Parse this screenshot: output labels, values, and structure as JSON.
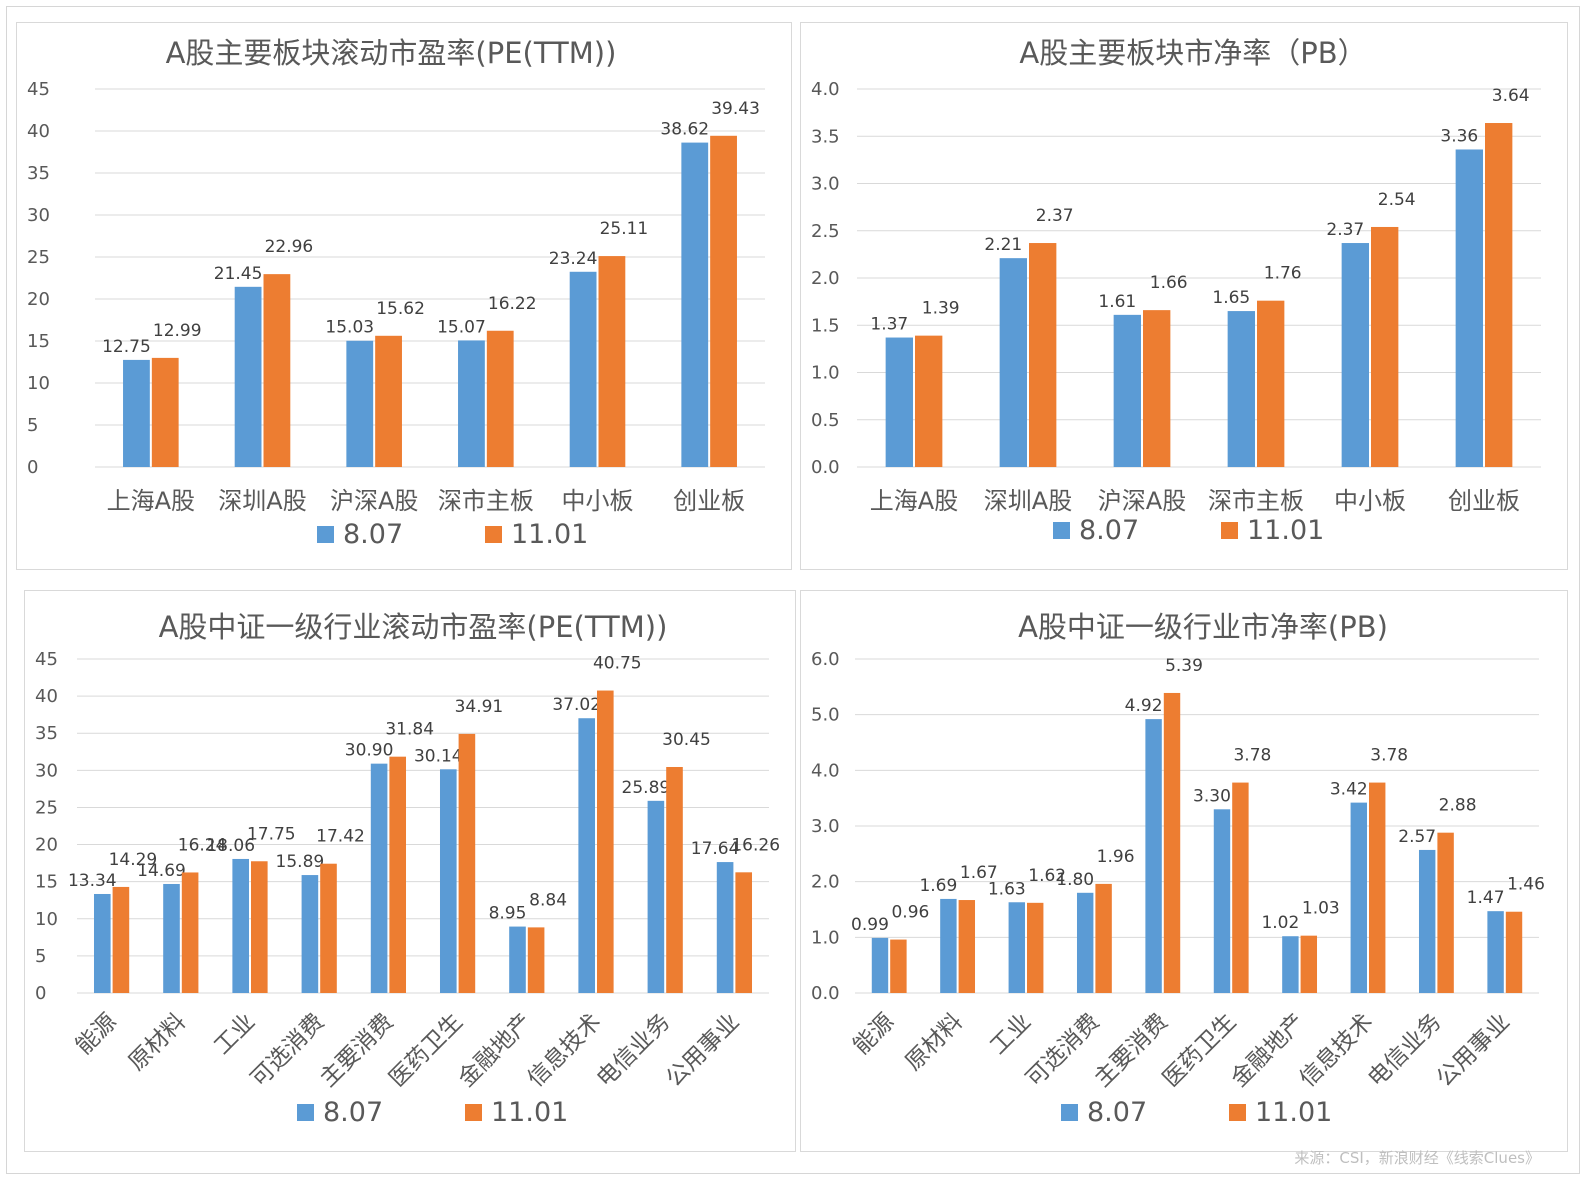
{
  "colors": {
    "s1": "#5b9bd5",
    "s2": "#ed7d31",
    "grid": "#d9d9d9",
    "text": "#595959"
  },
  "legend": [
    "8.07",
    "11.01"
  ],
  "source": "来源：CSI，新浪财经《线索Clues》",
  "chart_data": [
    {
      "type": "bar",
      "title": "A股主要板块滚动市盈率(PE(TTM))",
      "categories": [
        "上海A股",
        "深圳A股",
        "沪深A股",
        "深市主板",
        "中小板",
        "创业板"
      ],
      "series": [
        {
          "name": "8.07",
          "values": [
            12.75,
            21.45,
            15.03,
            15.07,
            23.24,
            38.62
          ]
        },
        {
          "name": "11.01",
          "values": [
            12.99,
            22.96,
            15.62,
            16.22,
            25.11,
            39.43
          ]
        }
      ],
      "ylim": [
        0,
        45
      ],
      "yticks": [
        "0",
        "5",
        "10",
        "15",
        "20",
        "25",
        "30",
        "35",
        "40",
        "45"
      ],
      "labels": [
        [
          "12.75",
          "21.45",
          "15.03",
          "15.07",
          "23.24",
          "38.62"
        ],
        [
          "12.99",
          "22.96",
          "15.62",
          "16.22",
          "25.11",
          "39.43"
        ]
      ],
      "grid": true,
      "legend_position": "bottom"
    },
    {
      "type": "bar",
      "title": "A股主要板块市净率（PB）",
      "categories": [
        "上海A股",
        "深圳A股",
        "沪深A股",
        "深市主板",
        "中小板",
        "创业板"
      ],
      "series": [
        {
          "name": "8.07",
          "values": [
            1.37,
            2.21,
            1.61,
            1.65,
            2.37,
            3.36
          ]
        },
        {
          "name": "11.01",
          "values": [
            1.39,
            2.37,
            1.66,
            1.76,
            2.54,
            3.64
          ]
        }
      ],
      "ylim": [
        0,
        4
      ],
      "yticks": [
        "0.0",
        "0.5",
        "1.0",
        "1.5",
        "2.0",
        "2.5",
        "3.0",
        "3.5",
        "4.0"
      ],
      "labels": [
        [
          "1.37",
          "2.21",
          "1.61",
          "1.65",
          "2.37",
          "3.36"
        ],
        [
          "1.39",
          "2.37",
          "1.66",
          "1.76",
          "2.54",
          "3.64"
        ]
      ],
      "grid": true,
      "legend_position": "bottom"
    },
    {
      "type": "bar",
      "title": "A股中证一级行业滚动市盈率(PE(TTM))",
      "categories": [
        "能源",
        "原材料",
        "工业",
        "可选消费",
        "主要消费",
        "医药卫生",
        "金融地产",
        "信息技术",
        "电信业务",
        "公用事业"
      ],
      "series": [
        {
          "name": "8.07",
          "values": [
            13.34,
            14.69,
            18.06,
            15.89,
            30.9,
            30.14,
            8.95,
            37.02,
            25.89,
            17.64
          ]
        },
        {
          "name": "11.01",
          "values": [
            14.29,
            16.24,
            17.75,
            17.42,
            31.84,
            34.91,
            8.84,
            40.75,
            30.45,
            16.26
          ]
        }
      ],
      "ylim": [
        0,
        45
      ],
      "yticks": [
        "0",
        "5",
        "10",
        "15",
        "20",
        "25",
        "30",
        "35",
        "40",
        "45"
      ],
      "labels": [
        [
          "13.34",
          "14.69",
          "18.06",
          "15.89",
          "30.90",
          "30.14",
          "8.95",
          "37.02",
          "25.89",
          "17.64"
        ],
        [
          "14.29",
          "16.24",
          "17.75",
          "17.42",
          "31.84",
          "34.91",
          "8.84",
          "40.75",
          "30.45",
          "16.26"
        ]
      ],
      "grid": true,
      "legend_position": "bottom"
    },
    {
      "type": "bar",
      "title": "A股中证一级行业市净率(PB)",
      "categories": [
        "能源",
        "原材料",
        "工业",
        "可选消费",
        "主要消费",
        "医药卫生",
        "金融地产",
        "信息技术",
        "电信业务",
        "公用事业"
      ],
      "series": [
        {
          "name": "8.07",
          "values": [
            0.99,
            1.69,
            1.63,
            1.8,
            4.92,
            3.3,
            1.02,
            3.42,
            2.57,
            1.47
          ]
        },
        {
          "name": "11.01",
          "values": [
            0.96,
            1.67,
            1.62,
            1.96,
            5.39,
            3.78,
            1.03,
            3.78,
            2.88,
            1.46
          ]
        }
      ],
      "ylim": [
        0,
        6
      ],
      "yticks": [
        "0.0",
        "1.0",
        "2.0",
        "3.0",
        "4.0",
        "5.0",
        "6.0"
      ],
      "labels": [
        [
          "0.99",
          "1.69",
          "1.63",
          "1.80",
          "4.92",
          "3.30",
          "1.02",
          "3.42",
          "2.57",
          "1.47"
        ],
        [
          "0.96",
          "1.67",
          "1.62",
          "1.96",
          "5.39",
          "3.78",
          "1.03",
          "3.78",
          "2.88",
          "1.46"
        ]
      ],
      "grid": true,
      "legend_position": "bottom"
    }
  ]
}
